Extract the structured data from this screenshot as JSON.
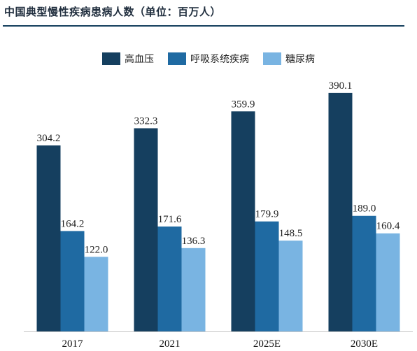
{
  "title": "中国典型慢性疾病患病人数（单位：百万人）",
  "chart_data": {
    "type": "bar",
    "title": "中国典型慢性疾病患病人数（单位：百万人）",
    "xlabel": "",
    "ylabel": "",
    "categories": [
      "2017",
      "2021",
      "2025E",
      "2030E"
    ],
    "series": [
      {
        "name": "高血压",
        "values": [
          304.2,
          332.3,
          359.9,
          390.1
        ],
        "color": "#153f5f"
      },
      {
        "name": "呼吸系统疾病",
        "values": [
          164.2,
          171.6,
          179.9,
          189.0
        ],
        "color": "#1f6aa2"
      },
      {
        "name": "糖尿病",
        "values": [
          122.0,
          136.3,
          148.5,
          160.4
        ],
        "color": "#79b4e2"
      }
    ],
    "ylim": [
      0,
      430
    ],
    "grid": false,
    "legend_position": "top"
  },
  "value_labels": [
    [
      "304.2",
      "164.2",
      "122.0"
    ],
    [
      "332.3",
      "171.6",
      "136.3"
    ],
    [
      "359.9",
      "179.9",
      "148.5"
    ],
    [
      "390.1",
      "189.0",
      "160.4"
    ]
  ]
}
